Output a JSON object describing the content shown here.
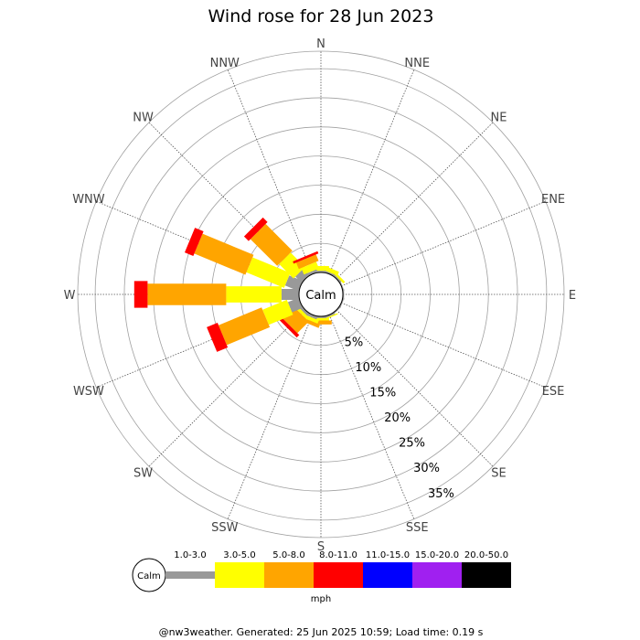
{
  "chart_data": {
    "type": "wind-rose",
    "title": "Wind rose for 28 Jun 2023",
    "directions": [
      "N",
      "NNE",
      "NE",
      "ENE",
      "E",
      "ESE",
      "SE",
      "SSE",
      "S",
      "SSW",
      "SW",
      "WSW",
      "W",
      "WNW",
      "NW",
      "NNW"
    ],
    "radial_ticks": [
      "5%",
      "10%",
      "15%",
      "20%",
      "25%",
      "30%",
      "35%"
    ],
    "radial_max_percent": 38,
    "calm_label": "Calm",
    "speed_bins": [
      {
        "label": "1.0-3.0",
        "color": "#999999"
      },
      {
        "label": "3.0-5.0",
        "color": "#ffff00"
      },
      {
        "label": "5.0-8.0",
        "color": "#ffa500"
      },
      {
        "label": "8.0-11.0",
        "color": "#ff0000"
      },
      {
        "label": "11.0-15.0",
        "color": "#0000ff"
      },
      {
        "label": "15.0-20.0",
        "color": "#a020f0"
      },
      {
        "label": "20.0-50.0",
        "color": "#000000"
      }
    ],
    "series": [
      {
        "name": "1.0-3.0",
        "values": [
          0.3,
          0.3,
          0.3,
          0.2,
          0.2,
          0.2,
          0.2,
          0.3,
          0.3,
          0.5,
          0.5,
          2.0,
          3.0,
          2.5,
          1.5,
          0.5
        ]
      },
      {
        "name": "3.0-5.0",
        "values": [
          0.8,
          0.7,
          0.4,
          0,
          0,
          0,
          0,
          0.2,
          0.4,
          0.6,
          0.5,
          4.5,
          9.5,
          7.0,
          3.5,
          1.2
        ]
      },
      {
        "name": "5.0-8.0",
        "values": [
          0,
          0,
          0,
          0,
          0,
          0,
          0,
          0,
          0.7,
          0.6,
          2.8,
          8.0,
          13.5,
          9.5,
          6.5,
          1.2
        ]
      },
      {
        "name": "8.0-11.0",
        "values": [
          0,
          0,
          0,
          0,
          0,
          0,
          0,
          0,
          0,
          0,
          0.6,
          2.0,
          2.3,
          1.6,
          1.1,
          0.4
        ]
      },
      {
        "name": "11.0-15.0",
        "values": [
          0,
          0,
          0,
          0,
          0,
          0,
          0,
          0,
          0,
          0,
          0,
          0,
          0,
          0,
          0,
          0
        ]
      },
      {
        "name": "15.0-20.0",
        "values": [
          0,
          0,
          0,
          0,
          0,
          0,
          0,
          0,
          0,
          0,
          0,
          0,
          0,
          0,
          0,
          0
        ]
      },
      {
        "name": "20.0-50.0",
        "values": [
          0,
          0,
          0,
          0,
          0,
          0,
          0,
          0,
          0,
          0,
          0,
          0,
          0,
          0,
          0,
          0
        ]
      }
    ],
    "legend_unit": "mph"
  },
  "footer": "@nw3weather. Generated: 25 Jun 2025 10:59; Load time: 0.19 s"
}
